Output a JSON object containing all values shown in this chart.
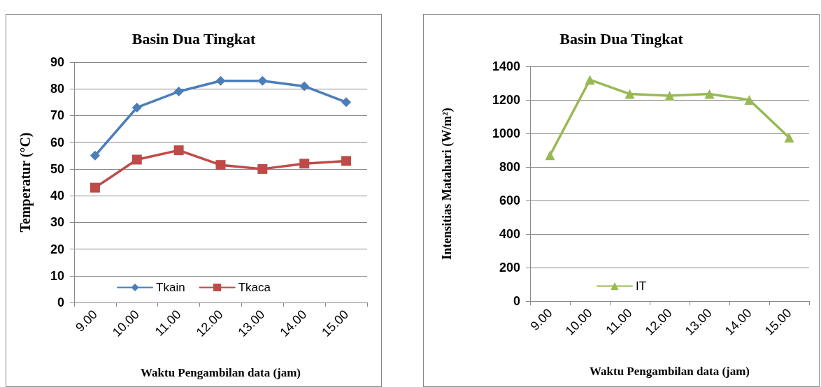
{
  "chart_data": [
    {
      "type": "line",
      "title": "Basin Dua Tingkat",
      "xlabel": "Waktu Pengambilan data (jam)",
      "ylabel": "Temperatur (°C)",
      "categories": [
        "9.00",
        "10.00",
        "11.00",
        "12.00",
        "13.00",
        "14.00",
        "15.00"
      ],
      "series": [
        {
          "name": "Tkain",
          "color": "#4a7ebb",
          "marker": "diamond",
          "values": [
            55,
            73,
            79,
            83,
            83,
            81,
            75
          ]
        },
        {
          "name": "Tkaca",
          "color": "#be4b48",
          "marker": "square",
          "values": [
            43,
            53.5,
            57,
            51.5,
            50,
            52,
            53
          ]
        }
      ],
      "ylim": [
        0,
        90
      ],
      "yticks": [
        0,
        10,
        20,
        30,
        40,
        50,
        60,
        70,
        80,
        90
      ],
      "grid": "y",
      "legend": "bottom",
      "line_style": "solid"
    },
    {
      "type": "line",
      "title": "Basin Dua Tingkat",
      "xlabel": "Waktu Pengambilan data (jam)",
      "ylabel": "Intensitias Matahari (W/m²)",
      "categories": [
        "9.00",
        "10.00",
        "11.00",
        "12.00",
        "13.00",
        "14.00",
        "15.00"
      ],
      "series": [
        {
          "name": "IT",
          "color": "#98b954",
          "marker": "triangle",
          "values": [
            870,
            1320,
            1235,
            1225,
            1235,
            1200,
            975
          ]
        }
      ],
      "ylim": [
        0,
        1400
      ],
      "yticks": [
        0,
        200,
        400,
        600,
        800,
        1000,
        1200,
        1400
      ],
      "grid": "y",
      "legend": "bottom",
      "line_style": "solid"
    }
  ]
}
